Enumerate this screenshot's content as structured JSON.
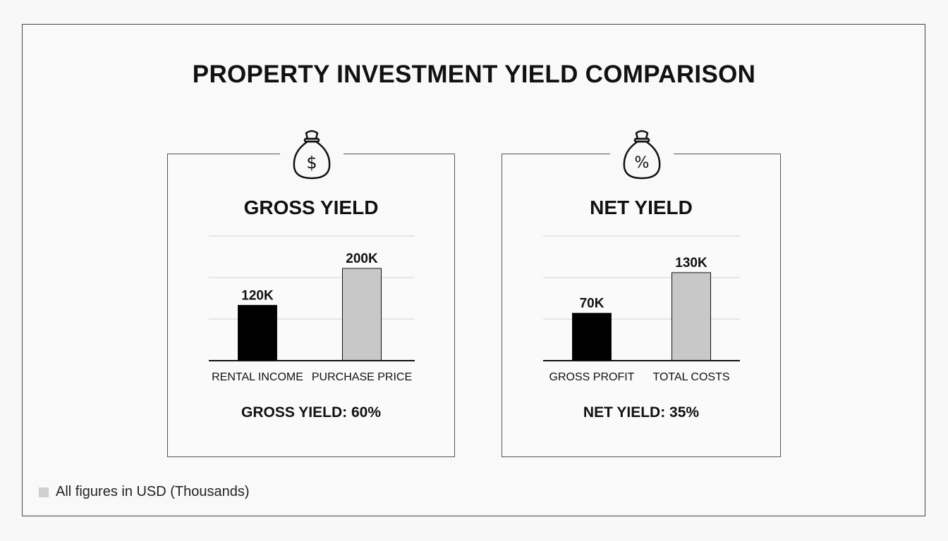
{
  "title": "PROPERTY INVESTMENT YIELD COMPARISON",
  "footnote": "All figures in USD (Thousands)",
  "colors": {
    "dark_bar": "#000000",
    "light_bar": "#c8c8c8",
    "grid": "#d9d9d9",
    "axis": "#111111"
  },
  "panels": [
    {
      "title": "GROSS YIELD",
      "icon": "dollar-money-bag-icon",
      "icon_symbol": "$",
      "yield_text": "GROSS YIELD: 60%"
    },
    {
      "title": "NET YIELD",
      "icon": "percent-money-bag-icon",
      "icon_symbol": "%",
      "yield_text": "NET YIELD: 35%"
    }
  ],
  "chart_data": [
    {
      "type": "bar",
      "title": "GROSS YIELD",
      "categories": [
        "RENTAL INCOME",
        "PURCHASE PRICE"
      ],
      "values": [
        120,
        200
      ],
      "value_labels": [
        "120K",
        "200K"
      ],
      "bar_colors": [
        "#000000",
        "#c8c8c8"
      ],
      "grid": true,
      "annotation": "GROSS YIELD: 60%"
    },
    {
      "type": "bar",
      "title": "NET YIELD",
      "categories": [
        "GROSS PROFIT",
        "TOTAL COSTS"
      ],
      "values": [
        70,
        130
      ],
      "value_labels": [
        "70K",
        "130K"
      ],
      "bar_colors": [
        "#000000",
        "#c8c8c8"
      ],
      "grid": true,
      "annotation": "NET YIELD: 35%"
    }
  ]
}
